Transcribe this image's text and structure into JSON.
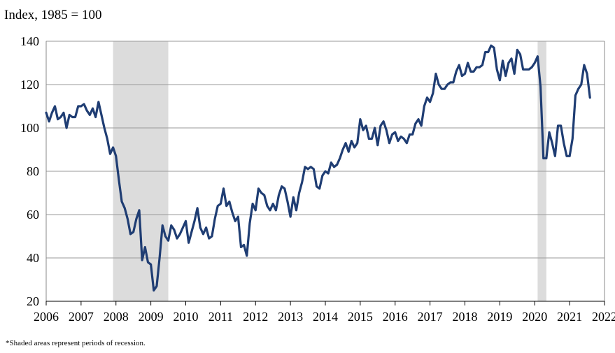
{
  "chart_data": {
    "type": "line",
    "title": "",
    "ylabel": "Index, 1985 = 100",
    "xlabel": "",
    "footnote": "*Shaded areas represent periods of recession.",
    "ylim": [
      20,
      140
    ],
    "yticks": [
      20,
      40,
      60,
      80,
      100,
      120,
      140
    ],
    "xlim": [
      2006.0,
      2022.0
    ],
    "xtick_labels": [
      "2006",
      "2007",
      "2008",
      "2009",
      "2010",
      "2011",
      "2012",
      "2013",
      "2014",
      "2015",
      "2016",
      "2017",
      "2018",
      "2019",
      "2020",
      "2021",
      "2022"
    ],
    "grid": true,
    "line_color": "#1f3d73",
    "recession_color": "#dcdcdc",
    "recessions": [
      {
        "start": "2007-12",
        "end": "2009-06"
      },
      {
        "start": "2020-02",
        "end": "2020-04"
      }
    ],
    "series": [
      {
        "x_start": "2006-01",
        "frequency": "monthly",
        "values": [
          107,
          103,
          107,
          110,
          104,
          105,
          107,
          100,
          106,
          105,
          105,
          110,
          110,
          111,
          108,
          106,
          109,
          105,
          112,
          106,
          100,
          95,
          88,
          91,
          87,
          76,
          66,
          63,
          58,
          51,
          52,
          58,
          62,
          39,
          45,
          38,
          37,
          25,
          27,
          40,
          55,
          50,
          48,
          55,
          53,
          49,
          51,
          54,
          57,
          47,
          52,
          57,
          63,
          54,
          51,
          54,
          49,
          50,
          58,
          64,
          65,
          72,
          64,
          66,
          61,
          57,
          59,
          45,
          46,
          41,
          56,
          65,
          62,
          72,
          70,
          69,
          64,
          62,
          65,
          62,
          69,
          73,
          72,
          66,
          59,
          68,
          62,
          70,
          75,
          82,
          81,
          82,
          81,
          73,
          72,
          78,
          80,
          79,
          84,
          82,
          83,
          86,
          90,
          93,
          89,
          94,
          91,
          93,
          104,
          99,
          101,
          95,
          95,
          100,
          92,
          101,
          103,
          99,
          93,
          97,
          98,
          94,
          96,
          95,
          93,
          97,
          97,
          102,
          104,
          101,
          110,
          114,
          112,
          116,
          125,
          120,
          118,
          118,
          120,
          121,
          121,
          126,
          129,
          124,
          125,
          130,
          126,
          126,
          128,
          128,
          129,
          135,
          135,
          138,
          137,
          127,
          122,
          131,
          124,
          130,
          132,
          125,
          136,
          134,
          127,
          127,
          127,
          128,
          130,
          133,
          119,
          86,
          86,
          98,
          93,
          87,
          101,
          101,
          93,
          87,
          87,
          95,
          115,
          118,
          120,
          129,
          125,
          114
        ]
      }
    ]
  }
}
